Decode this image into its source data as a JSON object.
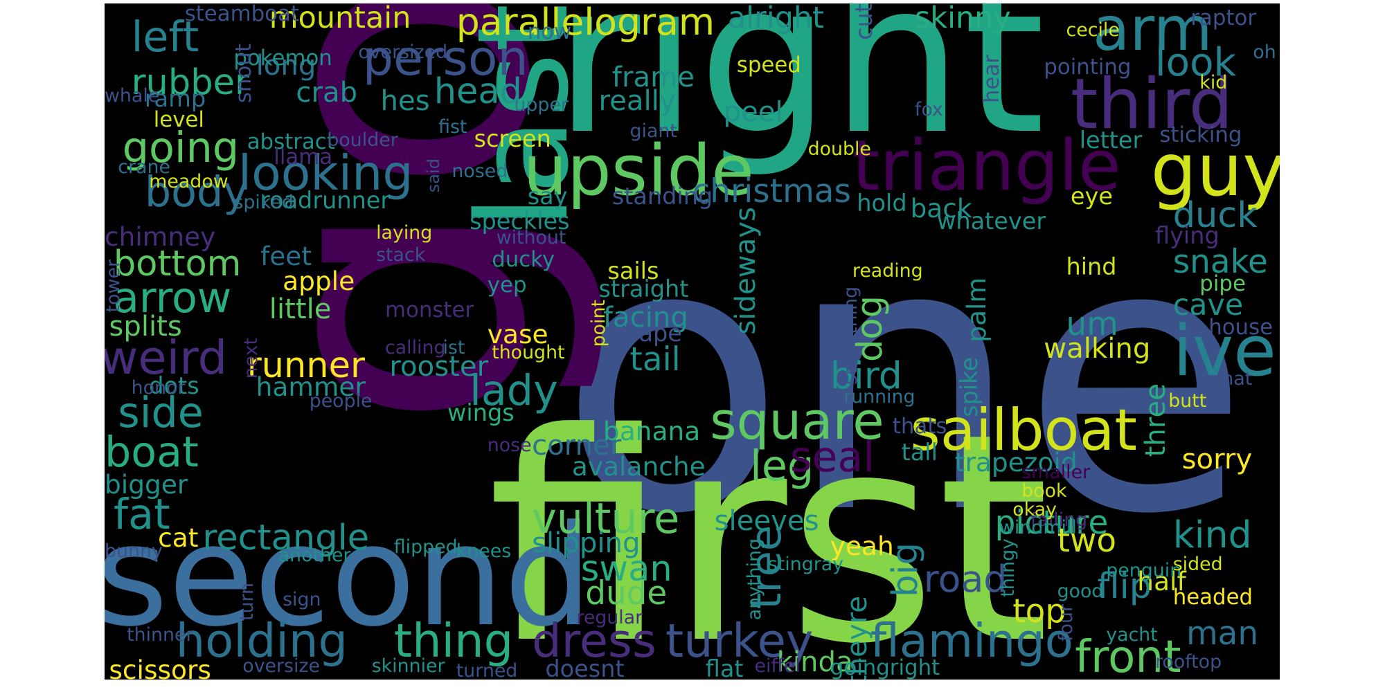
{
  "colors": {
    "background": "#000000",
    "page": "#ffffff",
    "palette": [
      "#440154",
      "#472d7b",
      "#3b528b",
      "#2c728e",
      "#21918c",
      "#28ae80",
      "#5ec962",
      "#addc30",
      "#fde725"
    ]
  },
  "words": [
    {
      "text": "one",
      "color": "#3b528b"
    },
    {
      "text": "first",
      "color": "#86d549"
    },
    {
      "text": "go",
      "color": "#440154"
    },
    {
      "text": "right",
      "color": "#21a685"
    },
    {
      "text": "second",
      "color": "#3b6f9e"
    },
    {
      "text": "last",
      "color": "#21a685"
    },
    {
      "text": "triangle",
      "color": "#440154"
    },
    {
      "text": "third",
      "color": "#472d7b"
    },
    {
      "text": "upside",
      "color": "#5ec962"
    },
    {
      "text": "sailboat",
      "color": "#d2e21b"
    },
    {
      "text": "guy",
      "color": "#d2e21b"
    },
    {
      "text": "arm",
      "color": "#26828e"
    },
    {
      "text": "ive",
      "color": "#26828e"
    },
    {
      "text": "person",
      "color": "#3b528b"
    },
    {
      "text": "parallelogram",
      "color": "#d2e21b"
    },
    {
      "text": "square",
      "color": "#5ec962"
    },
    {
      "text": "looking",
      "color": "#2c728e"
    },
    {
      "text": "weird",
      "color": "#472d7b"
    },
    {
      "text": "holding",
      "color": "#2c728e"
    },
    {
      "text": "thing",
      "color": "#28ae80"
    },
    {
      "text": "dress",
      "color": "#472d7b"
    },
    {
      "text": "turkey",
      "color": "#3b528b"
    },
    {
      "text": "flamingo",
      "color": "#2c728e"
    },
    {
      "text": "front",
      "color": "#5ec962"
    },
    {
      "text": "boat",
      "color": "#28ae80"
    },
    {
      "text": "side",
      "color": "#21918c"
    },
    {
      "text": "arrow",
      "color": "#28ae80"
    },
    {
      "text": "left",
      "color": "#26828e"
    },
    {
      "text": "body",
      "color": "#2c728e"
    },
    {
      "text": "going",
      "color": "#5ec962"
    },
    {
      "text": "rubber",
      "color": "#28ae80"
    },
    {
      "text": "bottom",
      "color": "#5ec962"
    },
    {
      "text": "fat",
      "color": "#21918c"
    },
    {
      "text": "rectangle",
      "color": "#21918c"
    },
    {
      "text": "lady",
      "color": "#21918c"
    },
    {
      "text": "leg",
      "color": "#5ec962"
    },
    {
      "text": "seal",
      "color": "#440154"
    },
    {
      "text": "vulture",
      "color": "#5ec962"
    },
    {
      "text": "runner",
      "color": "#fde725"
    },
    {
      "text": "head",
      "color": "#21918c"
    },
    {
      "text": "look",
      "color": "#26828e"
    },
    {
      "text": "christmas",
      "color": "#2c728e"
    },
    {
      "text": "tree",
      "color": "#26828e"
    },
    {
      "text": "big",
      "color": "#26828e"
    },
    {
      "text": "dog",
      "color": "#5ec962"
    },
    {
      "text": "duck",
      "color": "#26828e"
    },
    {
      "text": "snake",
      "color": "#21918c"
    },
    {
      "text": "kind",
      "color": "#21918c"
    },
    {
      "text": "road",
      "color": "#3b528b"
    },
    {
      "text": "flip",
      "color": "#26828e"
    },
    {
      "text": "man",
      "color": "#2c728e"
    },
    {
      "text": "mountain",
      "color": "#d2e21b"
    },
    {
      "text": "alright",
      "color": "#21918c"
    },
    {
      "text": "skinny",
      "color": "#28ae80"
    },
    {
      "text": "cave",
      "color": "#21918c"
    },
    {
      "text": "um",
      "color": "#21918c"
    },
    {
      "text": "walking",
      "color": "#d2e21b"
    },
    {
      "text": "bird",
      "color": "#21918c"
    },
    {
      "text": "tail",
      "color": "#21918c"
    },
    {
      "text": "picture",
      "color": "#28ae80"
    },
    {
      "text": "two",
      "color": "#d2e21b"
    },
    {
      "text": "swan",
      "color": "#28ae80"
    },
    {
      "text": "dude",
      "color": "#5ec962"
    },
    {
      "text": "top",
      "color": "#d2e21b"
    },
    {
      "text": "sorry",
      "color": "#fde725"
    },
    {
      "text": "trapezoid",
      "color": "#21918c"
    },
    {
      "text": "three",
      "color": "#28ae80"
    },
    {
      "text": "corner",
      "color": "#2c728e"
    },
    {
      "text": "avalanche",
      "color": "#21918c"
    },
    {
      "text": "banana",
      "color": "#28ae80"
    },
    {
      "text": "sleeves",
      "color": "#21918c"
    },
    {
      "text": "slipping",
      "color": "#21918c"
    },
    {
      "text": "kinda",
      "color": "#5ec962"
    },
    {
      "text": "theyre",
      "color": "#21918c"
    },
    {
      "text": "yeah",
      "color": "#fde725"
    },
    {
      "text": "half",
      "color": "#d2e21b"
    },
    {
      "text": "rooster",
      "color": "#21918c"
    },
    {
      "text": "hammer",
      "color": "#21918c"
    },
    {
      "text": "wings",
      "color": "#28ae80"
    },
    {
      "text": "dots",
      "color": "#21918c"
    },
    {
      "text": "bigger",
      "color": "#21918c"
    },
    {
      "text": "cat",
      "color": "#fde725"
    },
    {
      "text": "scissors",
      "color": "#fde725"
    },
    {
      "text": "splits",
      "color": "#5ec962"
    },
    {
      "text": "little",
      "color": "#5ec962"
    },
    {
      "text": "apple",
      "color": "#fde725"
    },
    {
      "text": "feet",
      "color": "#2c728e"
    },
    {
      "text": "chimney",
      "color": "#472d7b"
    },
    {
      "text": "crab",
      "color": "#21918c"
    },
    {
      "text": "long",
      "color": "#2c728e"
    },
    {
      "text": "hes",
      "color": "#21918c"
    },
    {
      "text": "frame",
      "color": "#21918c"
    },
    {
      "text": "really",
      "color": "#21918c"
    },
    {
      "text": "peel",
      "color": "#21918c"
    },
    {
      "text": "screen",
      "color": "#d2e21b"
    },
    {
      "text": "abstract",
      "color": "#21918c"
    },
    {
      "text": "llama",
      "color": "#472d7b"
    },
    {
      "text": "roadrunner",
      "color": "#21918c"
    },
    {
      "text": "say",
      "color": "#21918c"
    },
    {
      "text": "speckles",
      "color": "#21918c"
    },
    {
      "text": "sails",
      "color": "#d2e21b"
    },
    {
      "text": "straight",
      "color": "#21918c"
    },
    {
      "text": "facing",
      "color": "#21918c"
    },
    {
      "text": "vase",
      "color": "#fde725"
    },
    {
      "text": "shape",
      "color": "#3b528b"
    },
    {
      "text": "sideways",
      "color": "#21918c"
    },
    {
      "text": "palm",
      "color": "#21918c"
    },
    {
      "text": "back",
      "color": "#21918c"
    },
    {
      "text": "whatever",
      "color": "#21918c"
    },
    {
      "text": "hold",
      "color": "#21918c"
    },
    {
      "text": "standing",
      "color": "#3b528b"
    },
    {
      "text": "letter",
      "color": "#21918c"
    },
    {
      "text": "sticking",
      "color": "#3b528b"
    },
    {
      "text": "pointing",
      "color": "#3b528b"
    },
    {
      "text": "eye",
      "color": "#d2e21b"
    },
    {
      "text": "hind",
      "color": "#d2e21b"
    },
    {
      "text": "flying",
      "color": "#472d7b"
    },
    {
      "text": "pipe",
      "color": "#5ec962"
    },
    {
      "text": "house",
      "color": "#3b528b"
    },
    {
      "text": "spike",
      "color": "#21918c"
    },
    {
      "text": "tall",
      "color": "#21918c"
    },
    {
      "text": "thats",
      "color": "#3b528b"
    },
    {
      "text": "running",
      "color": "#2c728e"
    },
    {
      "text": "apart",
      "color": "#3b528b"
    },
    {
      "text": "point",
      "color": "#d2e21b"
    },
    {
      "text": "thought",
      "color": "#d2e21b"
    },
    {
      "text": "monster",
      "color": "#472d7b"
    },
    {
      "text": "yep",
      "color": "#21918c"
    },
    {
      "text": "ducky",
      "color": "#21918c"
    },
    {
      "text": "stack",
      "color": "#3b528b"
    },
    {
      "text": "laying",
      "color": "#d2e21b"
    },
    {
      "text": "without",
      "color": "#3b528b"
    },
    {
      "text": "steamboat",
      "color": "#3b528b"
    },
    {
      "text": "pokemon",
      "color": "#21918c"
    },
    {
      "text": "snout",
      "color": "#3b528b"
    },
    {
      "text": "oversized",
      "color": "#3b528b"
    },
    {
      "text": "now",
      "color": "#2c728e"
    },
    {
      "text": "cut",
      "color": "#3b528b"
    },
    {
      "text": "speed",
      "color": "#d2e21b"
    },
    {
      "text": "cecile",
      "color": "#d2e21b"
    },
    {
      "text": "raptor",
      "color": "#3b528b"
    },
    {
      "text": "oh",
      "color": "#2c728e"
    },
    {
      "text": "hear",
      "color": "#3b528b"
    },
    {
      "text": "kid",
      "color": "#d2e21b"
    },
    {
      "text": "upper",
      "color": "#2c728e"
    },
    {
      "text": "fox",
      "color": "#3b528b"
    },
    {
      "text": "fist",
      "color": "#2c728e"
    },
    {
      "text": "giant",
      "color": "#3b528b"
    },
    {
      "text": "double",
      "color": "#d2e21b"
    },
    {
      "text": "boulder",
      "color": "#3b528b"
    },
    {
      "text": "said",
      "color": "#3b528b"
    },
    {
      "text": "nosed",
      "color": "#2c728e"
    },
    {
      "text": "whale",
      "color": "#3b528b"
    },
    {
      "text": "ramp",
      "color": "#2c728e"
    },
    {
      "text": "level",
      "color": "#d2e21b"
    },
    {
      "text": "crane",
      "color": "#2c728e"
    },
    {
      "text": "meadow",
      "color": "#d2e21b"
    },
    {
      "text": "spiked",
      "color": "#2c728e"
    },
    {
      "text": "tower",
      "color": "#3b528b"
    },
    {
      "text": "reading",
      "color": "#d2e21b"
    },
    {
      "text": "something",
      "color": "#3b528b"
    },
    {
      "text": "calling",
      "color": "#472d7b"
    },
    {
      "text": "ist",
      "color": "#2c728e"
    },
    {
      "text": "next",
      "color": "#472d7b"
    },
    {
      "text": "honor",
      "color": "#3b528b"
    },
    {
      "text": "people",
      "color": "#3b528b"
    },
    {
      "text": "nose",
      "color": "#472d7b"
    },
    {
      "text": "another",
      "color": "#21918c"
    },
    {
      "text": "flipped",
      "color": "#21918c"
    },
    {
      "text": "knees",
      "color": "#21918c"
    },
    {
      "text": "bunny",
      "color": "#3b528b"
    },
    {
      "text": "turn",
      "color": "#3b528b"
    },
    {
      "text": "sign",
      "color": "#3b528b"
    },
    {
      "text": "thinner",
      "color": "#3b528b"
    },
    {
      "text": "oversize",
      "color": "#3b528b"
    },
    {
      "text": "skinnier",
      "color": "#21918c"
    },
    {
      "text": "turned",
      "color": "#3b528b"
    },
    {
      "text": "doesnt",
      "color": "#3b528b"
    },
    {
      "text": "regular",
      "color": "#472d7b"
    },
    {
      "text": "flat",
      "color": "#21918c"
    },
    {
      "text": "eiffel",
      "color": "#472d7b"
    },
    {
      "text": "goingright",
      "color": "#21918c"
    },
    {
      "text": "anything",
      "color": "#21918c"
    },
    {
      "text": "stingray",
      "color": "#21918c"
    },
    {
      "text": "falling",
      "color": "#472d7b"
    },
    {
      "text": "windmill",
      "color": "#21918c"
    },
    {
      "text": "book",
      "color": "#d2e21b"
    },
    {
      "text": "okay",
      "color": "#d2e21b"
    },
    {
      "text": "smaller",
      "color": "#440154"
    },
    {
      "text": "thingy",
      "color": "#21918c"
    },
    {
      "text": "penguin",
      "color": "#21918c"
    },
    {
      "text": "good",
      "color": "#21918c"
    },
    {
      "text": "four",
      "color": "#3b528b"
    },
    {
      "text": "sided",
      "color": "#d2e21b"
    },
    {
      "text": "headed",
      "color": "#fde725"
    },
    {
      "text": "yacht",
      "color": "#21918c"
    },
    {
      "text": "rooftop",
      "color": "#3b528b"
    },
    {
      "text": "butt",
      "color": "#d2e21b"
    },
    {
      "text": "hat",
      "color": "#3b528b"
    }
  ]
}
